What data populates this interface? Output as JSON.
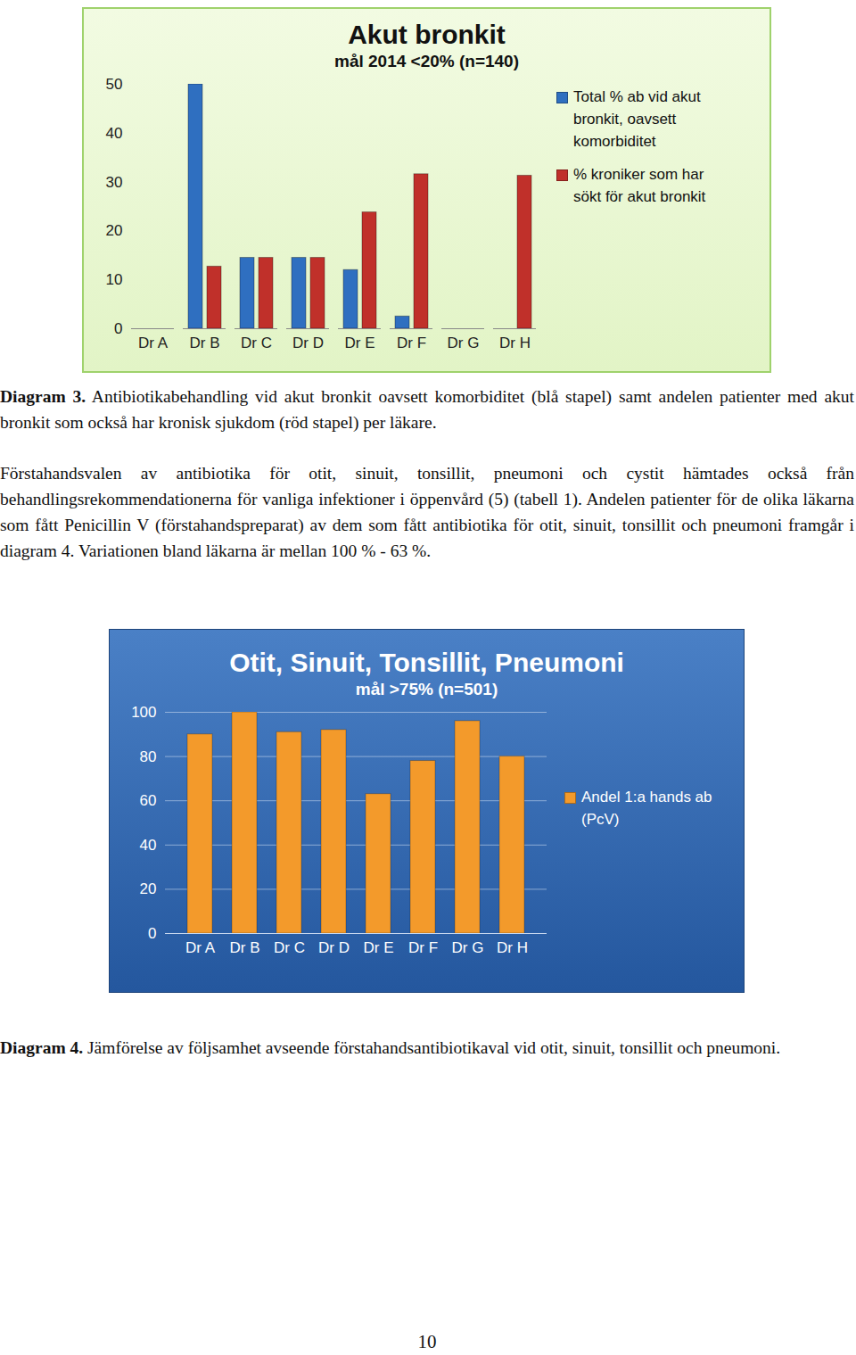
{
  "chart_data": [
    {
      "type": "bar",
      "title": "Akut bronkit",
      "subtitle": "mål 2014 <20% (n=140)",
      "categories": [
        "Dr A",
        "Dr B",
        "Dr C",
        "Dr D",
        "Dr E",
        "Dr F",
        "Dr G",
        "Dr H"
      ],
      "series": [
        {
          "name": "Total % ab vid akut bronkit, oavsett komorbiditet",
          "color": "#2f6fc0",
          "values": [
            0,
            50,
            14.5,
            14.5,
            12,
            2.5,
            0,
            0
          ]
        },
        {
          "name": "% kroniker som har sökt för akut bronkit",
          "color": "#c0302a",
          "values": [
            0,
            12.7,
            14.5,
            14.5,
            23.8,
            31.6,
            0,
            31.3
          ]
        }
      ],
      "ylim": [
        0,
        50
      ],
      "yticks": [
        0,
        10,
        20,
        30,
        40,
        50
      ],
      "grid": false,
      "legend": "right"
    },
    {
      "type": "bar",
      "title": "Otit, Sinuit, Tonsillit, Pneumoni",
      "subtitle": "mål >75% (n=501)",
      "categories": [
        "Dr A",
        "Dr B",
        "Dr C",
        "Dr D",
        "Dr E",
        "Dr F",
        "Dr G",
        "Dr H"
      ],
      "series": [
        {
          "name": "Andel 1:a hands ab (PcV)",
          "color": "#f39a2b",
          "values": [
            90,
            100,
            91,
            92,
            63,
            78,
            96,
            80
          ]
        }
      ],
      "ylim": [
        0,
        100
      ],
      "yticks": [
        0,
        20,
        40,
        60,
        80,
        100
      ],
      "grid": true,
      "legend": "right"
    }
  ],
  "document": {
    "captions": [
      {
        "label": "Diagram 3.",
        "text": " Antibiotikabehandling vid akut bronkit oavsett komorbiditet (blå stapel) samt andelen patienter med akut bronkit som också har kronisk sjukdom (röd stapel) per läkare."
      },
      {
        "label": "Diagram 4.",
        "text": " Jämförelse av följsamhet avseende förstahandsantibiotikaval vid otit, sinuit, tonsillit och pneumoni."
      }
    ],
    "paragraph": "Förstahandsvalen av antibiotika för otit, sinuit, tonsillit, pneumoni och cystit hämtades också från behandlingsrekommendationerna för vanliga infektioner i öppenvård (5) (tabell 1). Andelen patienter för de olika läkarna som fått Penicillin V (förstahandspreparat) av dem som fått antibiotika för otit, sinuit, tonsillit och pneumoni framgår i diagram 4. Variationen bland läkarna är mellan 100 % - 63 %.",
    "page_number": "10"
  }
}
